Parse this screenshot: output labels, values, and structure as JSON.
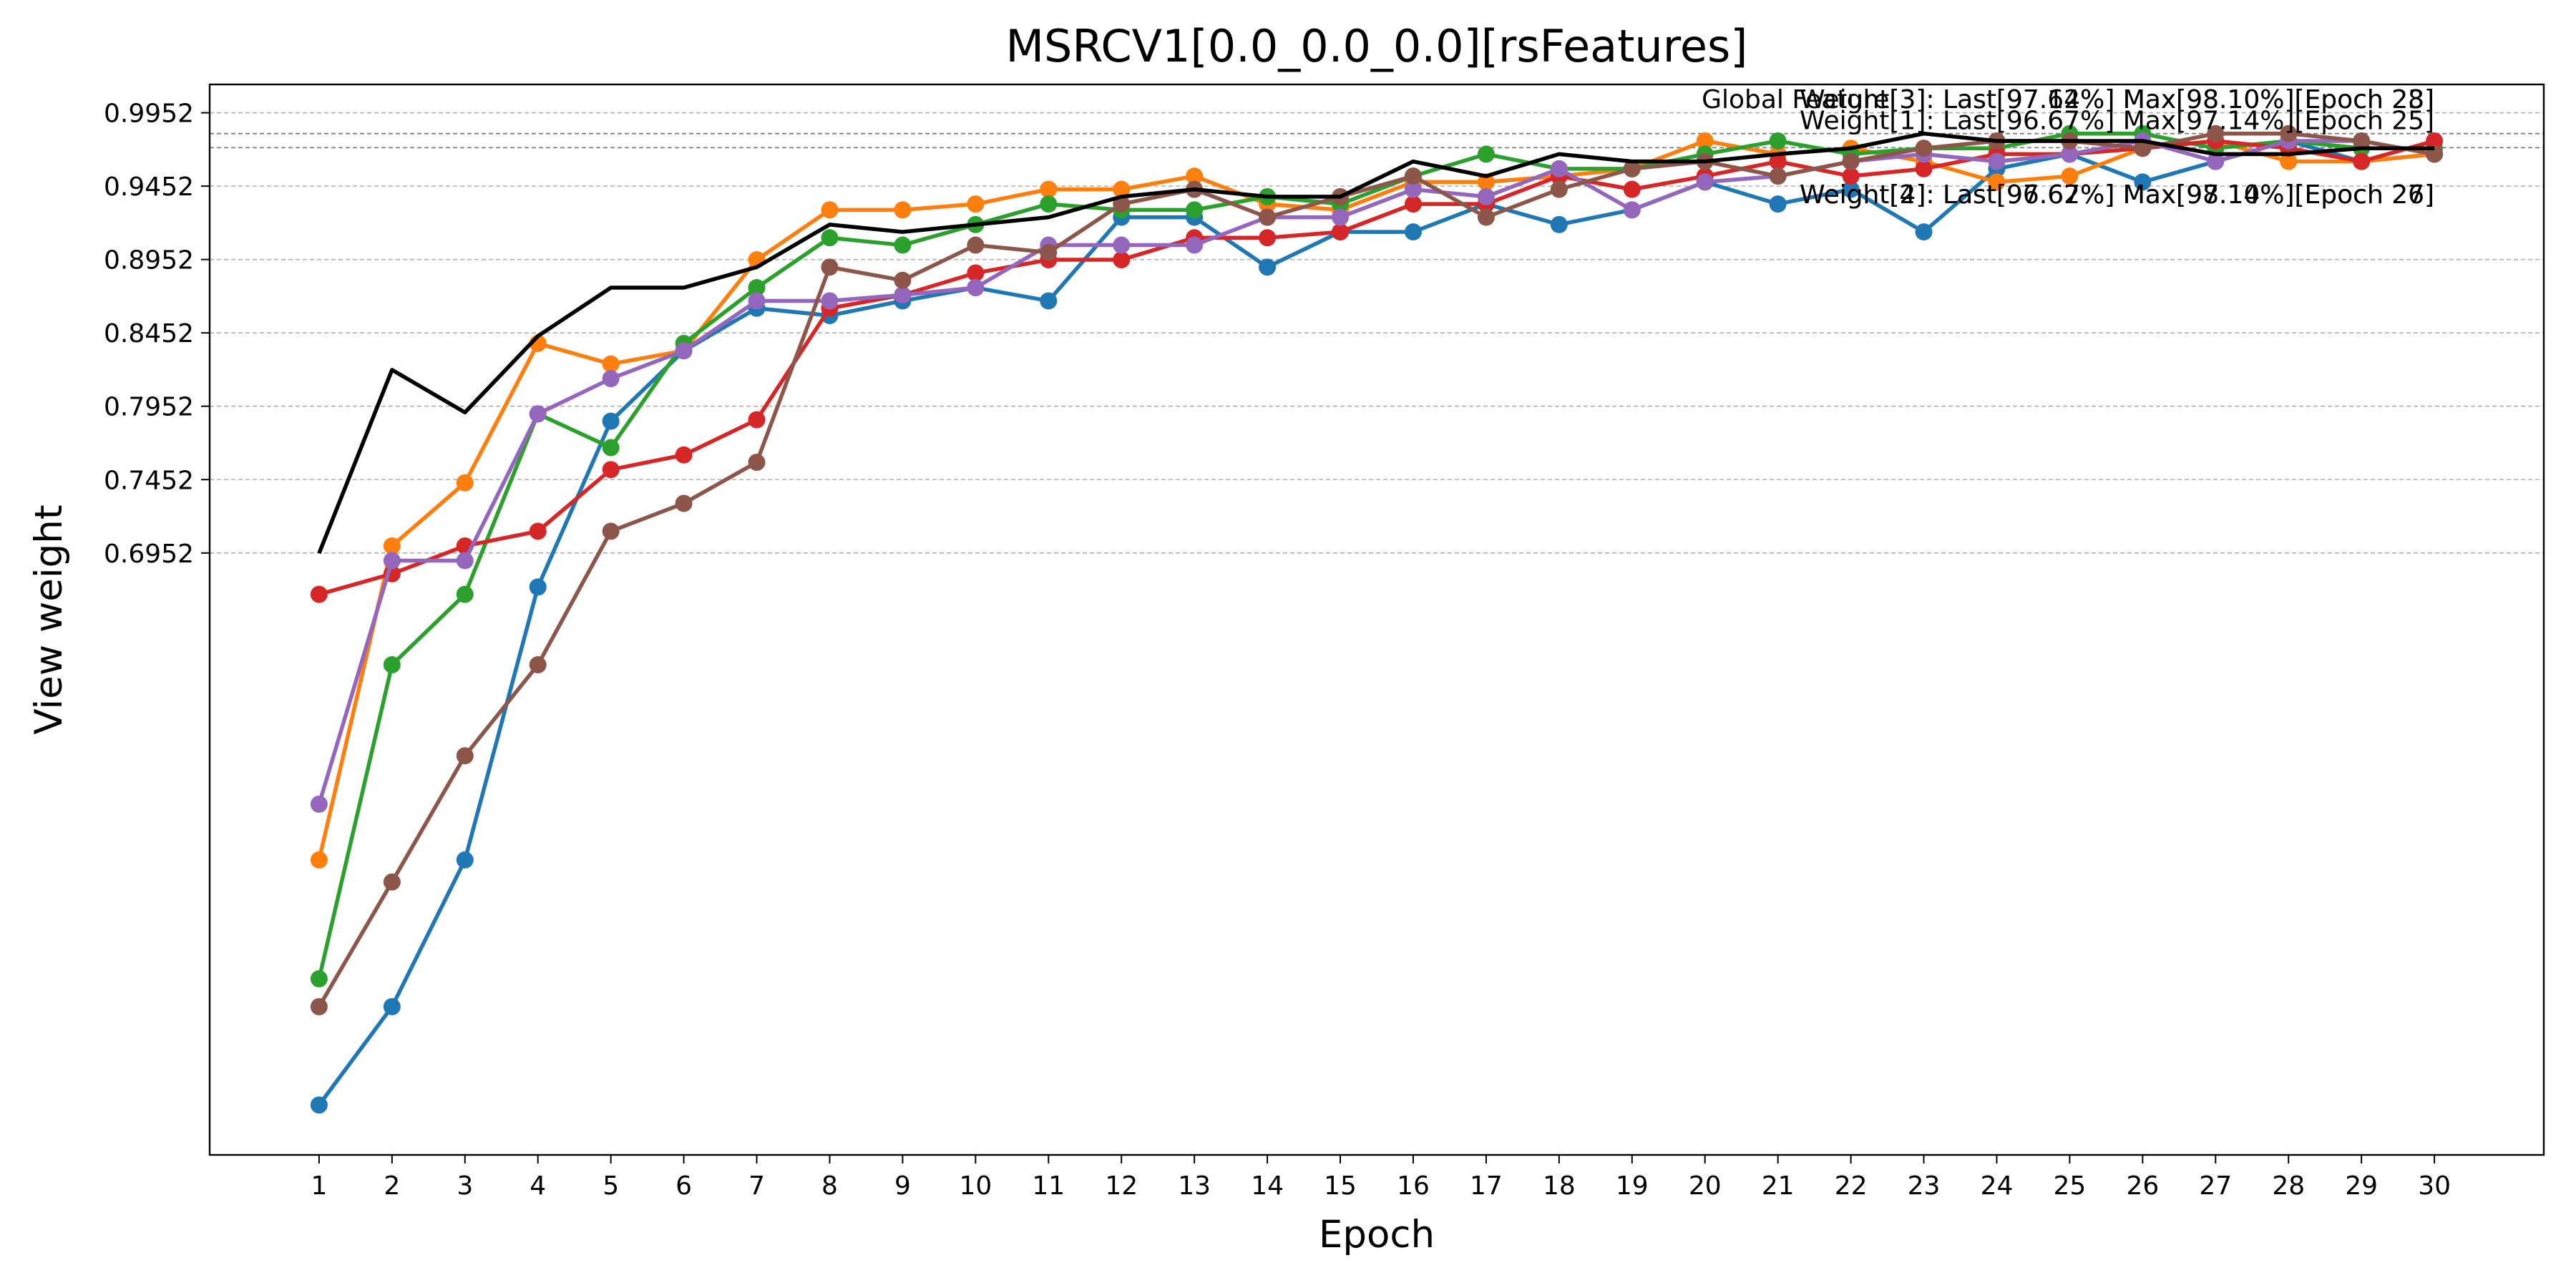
{
  "chart_data": {
    "type": "line",
    "title": "MSRCV1[0.0_0.0_0.0][rsFeatures]",
    "xlabel": "Epoch",
    "ylabel": "View weight",
    "x": [
      1,
      2,
      3,
      4,
      5,
      6,
      7,
      8,
      9,
      10,
      11,
      12,
      13,
      14,
      15,
      16,
      17,
      18,
      19,
      20,
      21,
      22,
      23,
      24,
      25,
      26,
      27,
      28,
      29,
      30
    ],
    "x_ticks": [
      "1",
      "2",
      "3",
      "4",
      "5",
      "6",
      "7",
      "8",
      "9",
      "10",
      "11",
      "12",
      "13",
      "14",
      "15",
      "16",
      "17",
      "18",
      "19",
      "20",
      "21",
      "22",
      "23",
      "24",
      "25",
      "26",
      "27",
      "28",
      "29",
      "30"
    ],
    "y_ticks": [
      "0.6952",
      "0.7452",
      "0.7952",
      "0.8452",
      "0.8952",
      "0.9452",
      "0.9952"
    ],
    "y_tick_values": [
      0.6952,
      0.7452,
      0.7952,
      0.8452,
      0.8952,
      0.9452,
      0.9952
    ],
    "xlim": [
      -0.5,
      31.5
    ],
    "ylim": [
      0.285,
      1.0145
    ],
    "grid": "horizontal dashed",
    "reference_lines": [
      0.981,
      0.9714
    ],
    "series": [
      {
        "color": "#1f77b4",
        "marker": true,
        "values": [
          0.319,
          0.386,
          0.486,
          0.672,
          0.785,
          0.833,
          0.862,
          0.857,
          0.867,
          0.876,
          0.867,
          0.924,
          0.924,
          0.89,
          0.914,
          0.914,
          0.933,
          0.919,
          0.929,
          0.948,
          0.933,
          0.943,
          0.914,
          0.957,
          0.967,
          0.948,
          0.962,
          0.976,
          0.962,
          0.967
        ]
      },
      {
        "color": "#ff7f0e",
        "marker": true,
        "values": [
          0.486,
          0.7,
          0.743,
          0.838,
          0.824,
          0.833,
          0.895,
          0.929,
          0.929,
          0.933,
          0.943,
          0.943,
          0.952,
          0.933,
          0.929,
          0.948,
          0.948,
          0.952,
          0.957,
          0.976,
          0.967,
          0.971,
          0.962,
          0.948,
          0.952,
          0.971,
          0.976,
          0.962,
          0.962,
          0.967
        ]
      },
      {
        "color": "#2ca02c",
        "marker": true,
        "values": [
          0.405,
          0.619,
          0.667,
          0.79,
          0.767,
          0.838,
          0.876,
          0.91,
          0.905,
          0.919,
          0.933,
          0.929,
          0.929,
          0.938,
          0.933,
          0.952,
          0.967,
          0.957,
          0.957,
          0.967,
          0.976,
          0.967,
          0.971,
          0.971,
          0.981,
          0.981,
          0.971,
          0.976,
          0.971,
          0.971
        ]
      },
      {
        "color": "#d62728",
        "marker": true,
        "values": [
          0.667,
          0.681,
          0.7,
          0.71,
          0.752,
          0.762,
          0.786,
          0.862,
          0.871,
          0.886,
          0.895,
          0.895,
          0.91,
          0.91,
          0.914,
          0.933,
          0.933,
          0.952,
          0.943,
          0.952,
          0.962,
          0.952,
          0.957,
          0.967,
          0.967,
          0.971,
          0.976,
          0.971,
          0.962,
          0.976
        ]
      },
      {
        "color": "#9467bd",
        "marker": true,
        "values": [
          0.524,
          0.69,
          0.69,
          0.79,
          0.814,
          0.833,
          0.867,
          0.867,
          0.871,
          0.876,
          0.905,
          0.905,
          0.905,
          0.924,
          0.924,
          0.943,
          0.938,
          0.957,
          0.929,
          0.948,
          0.952,
          0.962,
          0.967,
          0.962,
          0.967,
          0.976,
          0.962,
          0.976,
          0.976,
          0.967
        ]
      },
      {
        "color": "#8c564b",
        "marker": true,
        "values": [
          0.386,
          0.471,
          0.557,
          0.619,
          0.71,
          0.729,
          0.757,
          0.89,
          0.881,
          0.905,
          0.9,
          0.933,
          0.943,
          0.924,
          0.938,
          0.952,
          0.924,
          0.943,
          0.957,
          0.962,
          0.952,
          0.962,
          0.971,
          0.976,
          0.976,
          0.971,
          0.981,
          0.981,
          0.976,
          0.967
        ]
      },
      {
        "color": "#000000",
        "marker": false,
        "values": [
          0.695,
          0.82,
          0.791,
          0.843,
          0.876,
          0.876,
          0.89,
          0.919,
          0.914,
          0.919,
          0.924,
          0.938,
          0.943,
          0.938,
          0.938,
          0.962,
          0.952,
          0.967,
          0.962,
          0.962,
          0.967,
          0.971,
          0.981,
          0.976,
          0.976,
          0.976,
          0.967,
          0.967,
          0.971,
          0.971
        ]
      }
    ],
    "annotations": [
      {
        "text": "Global Feature[3]: Last[97.14%] Max[98.10%][Epoch 23]",
        "anchor": "right",
        "x": 30,
        "y": 0.9985
      },
      {
        "text": "Weight[3]: Last[97.62%] Max[98.10%][Epoch 28]",
        "anchor": "right",
        "x": 30,
        "y": 0.9985
      },
      {
        "text": "Weight[1]: Last[96.67%] Max[97.14%][Epoch 25]",
        "anchor": "right",
        "x": 30,
        "y": 0.984
      },
      {
        "text": "Weight[4]: Last[97.62%] Max[98.10%][Epoch 26]",
        "anchor": "right",
        "x": 30,
        "y": 0.9335
      },
      {
        "text": "Weight[2]: Last[96.67%] Max[97.14%][Epoch 27]",
        "anchor": "right",
        "x": 30,
        "y": 0.9335
      }
    ]
  }
}
